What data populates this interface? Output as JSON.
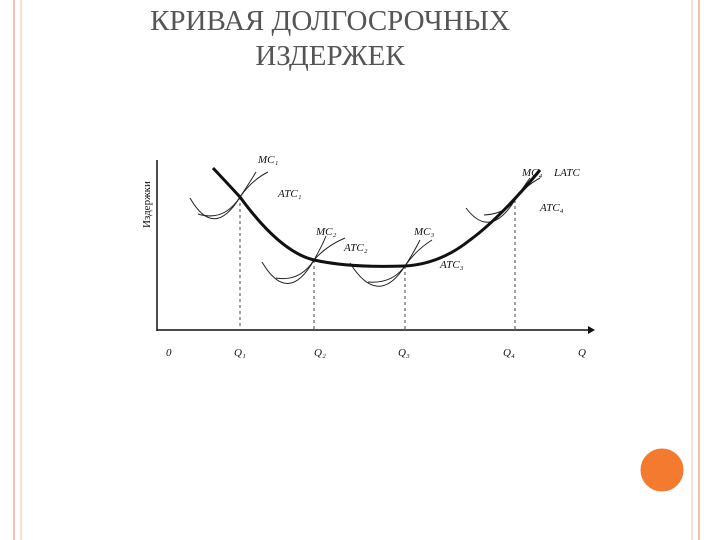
{
  "title": {
    "line1": "КРИВАЯ ДОЛГОСРОЧНЫХ",
    "line2": "ИЗДЕРЖЕК"
  },
  "diagram": {
    "y_axis_label": "Издержки",
    "x_labels": [
      "0",
      "Q₁",
      "Q₂",
      "Q₃",
      "Q₄",
      "Q"
    ],
    "curve_labels": [
      "MC₁",
      "ATC₁",
      "MC₂",
      "ATC₂",
      "MC₃",
      "ATC₃",
      "MC₄",
      "LATC",
      "ATC₄"
    ]
  }
}
